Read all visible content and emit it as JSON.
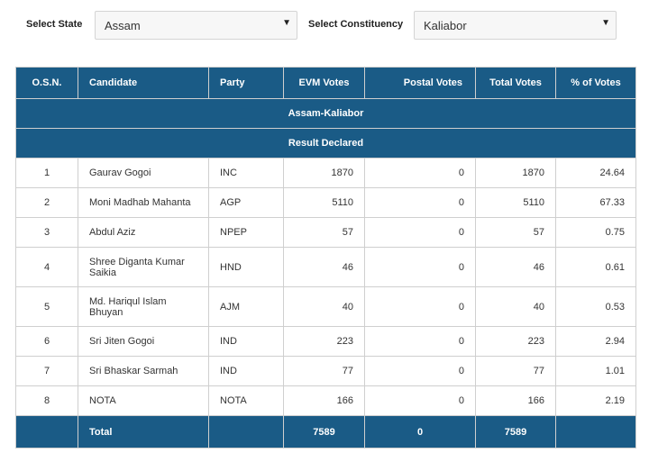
{
  "filters": {
    "state_label": "Select State",
    "state_value": "Assam",
    "constituency_label": "Select Constituency",
    "constituency_value": "Kaliabor"
  },
  "table": {
    "title": "Assam-Kaliabor",
    "status": "Result Declared",
    "headers": [
      "O.S.N.",
      "Candidate",
      "Party",
      "EVM Votes",
      "Postal Votes",
      "Total Votes",
      "% of Votes"
    ],
    "rows": [
      {
        "osn": "1",
        "candidate": "Gaurav Gogoi",
        "party": "INC",
        "evm": "1870",
        "postal": "0",
        "total": "1870",
        "pct": "24.64"
      },
      {
        "osn": "2",
        "candidate": "Moni Madhab Mahanta",
        "party": "AGP",
        "evm": "5110",
        "postal": "0",
        "total": "5110",
        "pct": "67.33"
      },
      {
        "osn": "3",
        "candidate": "Abdul Aziz",
        "party": "NPEP",
        "evm": "57",
        "postal": "0",
        "total": "57",
        "pct": "0.75"
      },
      {
        "osn": "4",
        "candidate": "Shree Diganta Kumar Saikia",
        "party": "HND",
        "evm": "46",
        "postal": "0",
        "total": "46",
        "pct": "0.61"
      },
      {
        "osn": "5",
        "candidate": "Md. Hariqul Islam Bhuyan",
        "party": "AJM",
        "evm": "40",
        "postal": "0",
        "total": "40",
        "pct": "0.53"
      },
      {
        "osn": "6",
        "candidate": "Sri Jiten Gogoi",
        "party": "IND",
        "evm": "223",
        "postal": "0",
        "total": "223",
        "pct": "2.94"
      },
      {
        "osn": "7",
        "candidate": "Sri Bhaskar Sarmah",
        "party": "IND",
        "evm": "77",
        "postal": "0",
        "total": "77",
        "pct": "1.01"
      },
      {
        "osn": "8",
        "candidate": "NOTA",
        "party": "NOTA",
        "evm": "166",
        "postal": "0",
        "total": "166",
        "pct": "2.19"
      }
    ],
    "total": {
      "label": "Total",
      "evm": "7589",
      "postal": "0",
      "total": "7589"
    }
  },
  "colors": {
    "header_bg": "#1a5b86",
    "header_text": "#ffffff"
  },
  "icons": {
    "dropdown": "caret-down-icon"
  }
}
